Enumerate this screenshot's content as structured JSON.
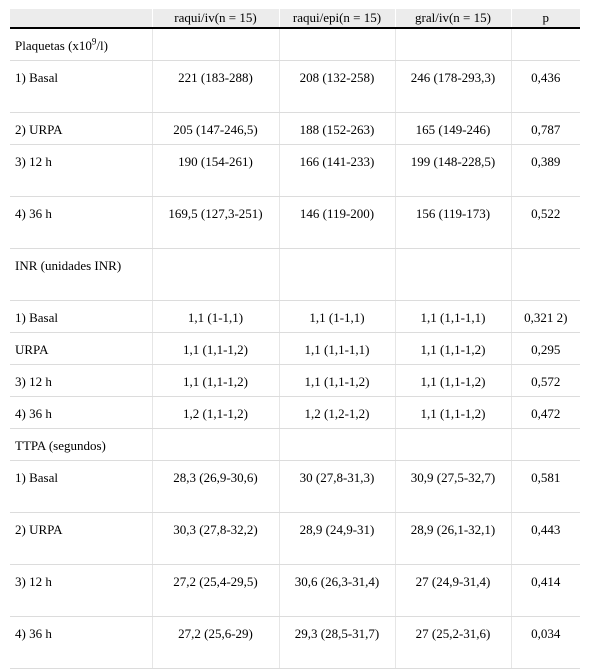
{
  "table": {
    "headers": [
      "",
      "raqui/iv(n = 15)",
      "raqui/epi(n = 15)",
      "gral/iv(n = 15)",
      "p"
    ],
    "rows": [
      {
        "type": "section",
        "label_pre": "Plaquetas (x10",
        "label_sup": "9",
        "label_post": "/l)",
        "cells": [
          "",
          "",
          "",
          ""
        ]
      },
      {
        "type": "double",
        "label": "1) Basal",
        "cells": [
          "221 (183-288)",
          "208 (132-258)",
          "246 (178-293,3)",
          "0,436"
        ]
      },
      {
        "type": "single",
        "label": "2) URPA",
        "cells": [
          "205 (147-246,5)",
          "188 (152-263)",
          "165 (149-246)",
          "0,787"
        ]
      },
      {
        "type": "double",
        "label": "3) 12 h",
        "cells": [
          "190 (154-261)",
          "166 (141-233)",
          "199 (148-228,5)",
          "0,389"
        ]
      },
      {
        "type": "double",
        "label": "4) 36 h",
        "cells": [
          "169,5 (127,3-251)",
          "146 (119-200)",
          "156 (119-173)",
          "0,522"
        ]
      },
      {
        "type": "double",
        "label": "INR (unidades INR)",
        "cells": [
          "",
          "",
          "",
          ""
        ]
      },
      {
        "type": "single",
        "label": "1) Basal",
        "cells": [
          "1,1 (1-1,1)",
          "1,1 (1-1,1)",
          "1,1 (1,1-1,1)",
          "0,321 2)"
        ]
      },
      {
        "type": "single",
        "label": "URPA",
        "cells": [
          "1,1 (1,1-1,2)",
          "1,1 (1,1-1,1)",
          "1,1 (1,1-1,2)",
          "0,295"
        ]
      },
      {
        "type": "single",
        "label": "3) 12 h",
        "cells": [
          "1,1 (1,1-1,2)",
          "1,1 (1,1-1,2)",
          "1,1 (1,1-1,2)",
          "0,572"
        ]
      },
      {
        "type": "single",
        "label": "4) 36 h",
        "cells": [
          "1,2 (1,1-1,2)",
          "1,2 (1,2-1,2)",
          "1,1 (1,1-1,2)",
          "0,472"
        ]
      },
      {
        "type": "section",
        "label": "TTPA (segundos)",
        "cells": [
          "",
          "",
          "",
          ""
        ]
      },
      {
        "type": "double",
        "label": "1) Basal",
        "cells": [
          "28,3 (26,9-30,6)",
          "30 (27,8-31,3)",
          "30,9 (27,5-32,7)",
          "0,581"
        ]
      },
      {
        "type": "double",
        "label": "2) URPA",
        "cells": [
          "30,3 (27,8-32,2)",
          "28,9 (24,9-31)",
          "28,9 (26,1-32,1)",
          "0,443"
        ]
      },
      {
        "type": "double",
        "label": "3) 12 h",
        "cells": [
          "27,2 (25,4-29,5)",
          "30,6 (26,3-31,4)",
          "27 (24,9-31,4)",
          "0,414"
        ]
      },
      {
        "type": "double",
        "label": "4) 36 h",
        "cells": [
          "27,2 (25,6-29)",
          "29,3 (28,5-31,7)",
          "27 (25,2-31,6)",
          "0,034"
        ]
      }
    ]
  }
}
